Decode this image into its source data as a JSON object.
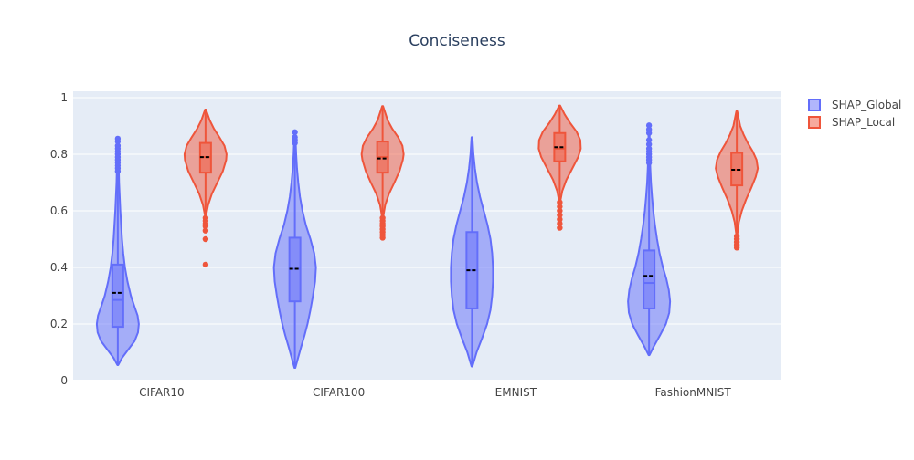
{
  "chart_data": {
    "type": "violin",
    "title": "Conciseness",
    "xlabel": "",
    "ylabel": "",
    "ylim": [
      0,
      1
    ],
    "yticks": [
      0,
      0.2,
      0.4,
      0.6,
      0.8,
      1
    ],
    "ytick_labels": [
      "0",
      "0.2",
      "0.4",
      "0.6",
      "0.8",
      "1"
    ],
    "categories": [
      "CIFAR10",
      "CIFAR100",
      "EMNIST",
      "FashionMNIST"
    ],
    "legend_position": "top-right",
    "grid": true,
    "series": [
      {
        "name": "SHAP_Global",
        "color": "#636efa",
        "groups": [
          {
            "category": "CIFAR10",
            "min": 0.055,
            "q1": 0.19,
            "median": 0.285,
            "mean": 0.31,
            "q3": 0.41,
            "upper_fence": 0.73,
            "outliers": [
              0.74,
              0.75,
              0.76,
              0.77,
              0.78,
              0.79,
              0.8,
              0.81,
              0.82,
              0.83,
              0.845,
              0.855
            ],
            "density": [
              [
                0.055,
                0.02
              ],
              [
                0.08,
                0.2
              ],
              [
                0.11,
                0.5
              ],
              [
                0.14,
                0.8
              ],
              [
                0.17,
                0.96
              ],
              [
                0.2,
                1.0
              ],
              [
                0.23,
                0.94
              ],
              [
                0.26,
                0.8
              ],
              [
                0.3,
                0.62
              ],
              [
                0.35,
                0.46
              ],
              [
                0.4,
                0.34
              ],
              [
                0.45,
                0.26
              ],
              [
                0.5,
                0.2
              ],
              [
                0.55,
                0.16
              ],
              [
                0.6,
                0.12
              ],
              [
                0.65,
                0.09
              ],
              [
                0.7,
                0.06
              ],
              [
                0.75,
                0.045
              ],
              [
                0.8,
                0.03
              ],
              [
                0.855,
                0.02
              ]
            ]
          },
          {
            "category": "CIFAR100",
            "min": 0.045,
            "q1": 0.28,
            "median": 0.395,
            "mean": 0.395,
            "q3": 0.505,
            "upper_fence": 0.83,
            "outliers": [
              0.84,
              0.85,
              0.86,
              0.878
            ],
            "density": [
              [
                0.045,
                0.02
              ],
              [
                0.08,
                0.15
              ],
              [
                0.12,
                0.3
              ],
              [
                0.16,
                0.46
              ],
              [
                0.2,
                0.6
              ],
              [
                0.25,
                0.74
              ],
              [
                0.3,
                0.86
              ],
              [
                0.35,
                0.96
              ],
              [
                0.4,
                1.0
              ],
              [
                0.45,
                0.92
              ],
              [
                0.5,
                0.74
              ],
              [
                0.55,
                0.52
              ],
              [
                0.6,
                0.36
              ],
              [
                0.65,
                0.24
              ],
              [
                0.7,
                0.16
              ],
              [
                0.75,
                0.1
              ],
              [
                0.8,
                0.06
              ],
              [
                0.878,
                0.02
              ]
            ]
          },
          {
            "category": "EMNIST",
            "min": 0.05,
            "q1": 0.255,
            "median": 0.39,
            "mean": 0.39,
            "q3": 0.525,
            "upper_fence": 0.86,
            "outliers": [],
            "density": [
              [
                0.05,
                0.02
              ],
              [
                0.1,
                0.22
              ],
              [
                0.15,
                0.48
              ],
              [
                0.2,
                0.72
              ],
              [
                0.25,
                0.88
              ],
              [
                0.3,
                0.96
              ],
              [
                0.35,
                1.0
              ],
              [
                0.4,
                1.0
              ],
              [
                0.45,
                0.96
              ],
              [
                0.5,
                0.88
              ],
              [
                0.55,
                0.74
              ],
              [
                0.6,
                0.56
              ],
              [
                0.65,
                0.38
              ],
              [
                0.7,
                0.24
              ],
              [
                0.75,
                0.14
              ],
              [
                0.8,
                0.07
              ],
              [
                0.86,
                0.02
              ]
            ]
          },
          {
            "category": "FashionMNIST",
            "min": 0.09,
            "q1": 0.255,
            "median": 0.345,
            "mean": 0.37,
            "q3": 0.46,
            "upper_fence": 0.76,
            "outliers": [
              0.77,
              0.78,
              0.79,
              0.8,
              0.81,
              0.82,
              0.835,
              0.85,
              0.875,
              0.888,
              0.902
            ],
            "density": [
              [
                0.09,
                0.02
              ],
              [
                0.12,
                0.22
              ],
              [
                0.16,
                0.52
              ],
              [
                0.2,
                0.8
              ],
              [
                0.24,
                0.96
              ],
              [
                0.28,
                1.0
              ],
              [
                0.32,
                0.94
              ],
              [
                0.36,
                0.82
              ],
              [
                0.4,
                0.66
              ],
              [
                0.45,
                0.5
              ],
              [
                0.5,
                0.38
              ],
              [
                0.55,
                0.28
              ],
              [
                0.6,
                0.2
              ],
              [
                0.65,
                0.14
              ],
              [
                0.7,
                0.09
              ],
              [
                0.75,
                0.06
              ],
              [
                0.8,
                0.035
              ],
              [
                0.902,
                0.02
              ]
            ]
          }
        ]
      },
      {
        "name": "SHAP_Local",
        "color": "#ef553b",
        "groups": [
          {
            "category": "CIFAR10",
            "min": 0.405,
            "q1": 0.735,
            "median": 0.79,
            "mean": 0.79,
            "q3": 0.84,
            "lower_fence": 0.585,
            "max": 0.958,
            "outliers": [
              0.41,
              0.5,
              0.53,
              0.545,
              0.555,
              0.565,
              0.575
            ],
            "density": [
              [
                0.585,
                0.03
              ],
              [
                0.62,
                0.12
              ],
              [
                0.66,
                0.3
              ],
              [
                0.7,
                0.56
              ],
              [
                0.74,
                0.82
              ],
              [
                0.78,
                0.98
              ],
              [
                0.8,
                1.0
              ],
              [
                0.83,
                0.9
              ],
              [
                0.86,
                0.66
              ],
              [
                0.89,
                0.4
              ],
              [
                0.92,
                0.2
              ],
              [
                0.958,
                0.02
              ]
            ]
          },
          {
            "category": "CIFAR100",
            "min": 0.505,
            "q1": 0.735,
            "median": 0.79,
            "mean": 0.785,
            "q3": 0.845,
            "lower_fence": 0.58,
            "max": 0.97,
            "outliers": [
              0.505,
              0.515,
              0.525,
              0.535,
              0.545,
              0.555,
              0.565,
              0.575
            ],
            "density": [
              [
                0.58,
                0.03
              ],
              [
                0.62,
                0.12
              ],
              [
                0.66,
                0.3
              ],
              [
                0.7,
                0.56
              ],
              [
                0.74,
                0.8
              ],
              [
                0.78,
                0.96
              ],
              [
                0.8,
                1.0
              ],
              [
                0.83,
                0.94
              ],
              [
                0.86,
                0.74
              ],
              [
                0.89,
                0.46
              ],
              [
                0.92,
                0.24
              ],
              [
                0.97,
                0.02
              ]
            ]
          },
          {
            "category": "EMNIST",
            "min": 0.535,
            "q1": 0.775,
            "median": 0.82,
            "mean": 0.825,
            "q3": 0.875,
            "lower_fence": 0.635,
            "max": 0.972,
            "outliers": [
              0.54,
              0.555,
              0.57,
              0.585,
              0.6,
              0.615,
              0.63
            ],
            "density": [
              [
                0.635,
                0.03
              ],
              [
                0.67,
                0.12
              ],
              [
                0.71,
                0.32
              ],
              [
                0.75,
                0.6
              ],
              [
                0.79,
                0.88
              ],
              [
                0.82,
                1.0
              ],
              [
                0.85,
                0.98
              ],
              [
                0.88,
                0.8
              ],
              [
                0.91,
                0.5
              ],
              [
                0.94,
                0.24
              ],
              [
                0.972,
                0.02
              ]
            ]
          },
          {
            "category": "FashionMNIST",
            "min": 0.465,
            "q1": 0.69,
            "median": 0.745,
            "mean": 0.745,
            "q3": 0.805,
            "lower_fence": 0.52,
            "max": 0.952,
            "outliers": [
              0.47,
              0.48,
              0.49,
              0.5,
              0.51
            ],
            "density": [
              [
                0.52,
                0.03
              ],
              [
                0.56,
                0.1
              ],
              [
                0.6,
                0.24
              ],
              [
                0.64,
                0.44
              ],
              [
                0.68,
                0.68
              ],
              [
                0.72,
                0.9
              ],
              [
                0.75,
                1.0
              ],
              [
                0.78,
                0.94
              ],
              [
                0.81,
                0.76
              ],
              [
                0.84,
                0.52
              ],
              [
                0.87,
                0.32
              ],
              [
                0.9,
                0.16
              ],
              [
                0.952,
                0.02
              ]
            ]
          }
        ]
      }
    ]
  }
}
